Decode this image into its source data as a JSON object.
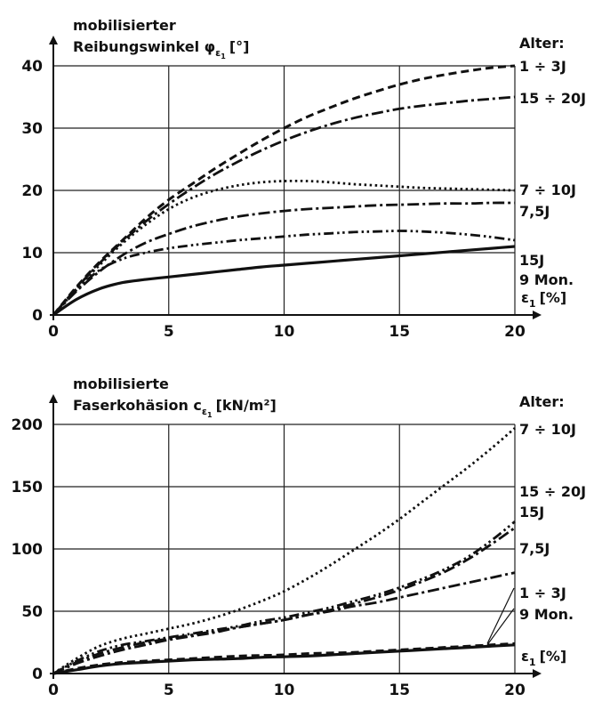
{
  "chart_data": [
    {
      "type": "line",
      "ylabel_line1": "mobilisierter",
      "ylabel_line2_prefix": "Reibungswinkel φ",
      "ylabel_sub": "ε",
      "ylabel_subsub": "1",
      "ylabel_unit": "[°]",
      "xlabel": "ε",
      "xlabel_sub": "1",
      "xlabel_unit": "[%]",
      "legend_title": "Alter:",
      "xlim": [
        0,
        20
      ],
      "ylim": [
        0,
        40
      ],
      "xticks": [
        0,
        5,
        10,
        15,
        20
      ],
      "yticks": [
        0,
        10,
        20,
        30,
        40
      ],
      "grid": true,
      "series": [
        {
          "name": "1 ÷ 3J",
          "dash": "dashed",
          "x": [
            0,
            1,
            2,
            3,
            4,
            5,
            6,
            7,
            8,
            9,
            10,
            11,
            12,
            13,
            14,
            15,
            16,
            17,
            18,
            19,
            20
          ],
          "y": [
            0,
            4.5,
            8.5,
            12,
            15.5,
            18.5,
            21,
            23.5,
            25.8,
            28,
            30,
            31.8,
            33.3,
            34.7,
            35.9,
            37,
            37.9,
            38.6,
            39.2,
            39.7,
            40
          ]
        },
        {
          "name": "15 ÷ 20J",
          "dash": "dashdot",
          "x": [
            0,
            1,
            2,
            3,
            4,
            5,
            6,
            7,
            8,
            9,
            10,
            11,
            12,
            13,
            14,
            15,
            16,
            17,
            18,
            19,
            20
          ],
          "y": [
            0,
            4.3,
            8.3,
            11.8,
            15,
            17.8,
            20.3,
            22.6,
            24.6,
            26.4,
            28,
            29.4,
            30.6,
            31.6,
            32.4,
            33.1,
            33.6,
            34,
            34.4,
            34.7,
            35
          ]
        },
        {
          "name": "7 ÷ 10J",
          "dash": "dotted",
          "x": [
            0,
            1,
            2,
            3,
            4,
            5,
            6,
            7,
            8,
            9,
            10,
            11,
            12,
            13,
            14,
            15,
            16,
            17,
            18,
            19,
            20
          ],
          "y": [
            0,
            4.2,
            8,
            11.5,
            14.5,
            17,
            18.8,
            20,
            20.8,
            21.3,
            21.5,
            21.5,
            21.3,
            21,
            20.8,
            20.6,
            20.4,
            20.3,
            20.2,
            20.1,
            20
          ]
        },
        {
          "name": "7,5J",
          "dash": "dashdot",
          "x": [
            0,
            1,
            2,
            3,
            4,
            5,
            6,
            7,
            8,
            9,
            10,
            11,
            12,
            13,
            14,
            15,
            16,
            17,
            18,
            19,
            20
          ],
          "y": [
            0,
            3.8,
            7,
            9.6,
            11.6,
            13,
            14.2,
            15.1,
            15.8,
            16.3,
            16.7,
            17,
            17.2,
            17.4,
            17.6,
            17.7,
            17.8,
            17.9,
            17.9,
            18,
            18
          ]
        },
        {
          "name": "15J",
          "dash": "dashdotdot",
          "x": [
            0,
            1,
            2,
            3,
            4,
            5,
            6,
            7,
            8,
            9,
            10,
            11,
            12,
            13,
            14,
            15,
            16,
            17,
            18,
            19,
            20
          ],
          "y": [
            0,
            4,
            7.2,
            9,
            10,
            10.7,
            11.2,
            11.6,
            12,
            12.3,
            12.6,
            12.9,
            13.1,
            13.3,
            13.4,
            13.5,
            13.4,
            13.2,
            12.9,
            12.5,
            12
          ]
        },
        {
          "name": "9 Mon.",
          "dash": "solid",
          "x": [
            0,
            1,
            2,
            3,
            4,
            5,
            6,
            7,
            8,
            9,
            10,
            11,
            12,
            13,
            14,
            15,
            16,
            17,
            18,
            19,
            20
          ],
          "y": [
            0,
            2.5,
            4.2,
            5.2,
            5.7,
            6.1,
            6.5,
            6.9,
            7.3,
            7.7,
            8,
            8.3,
            8.6,
            8.9,
            9.2,
            9.5,
            9.8,
            10.1,
            10.4,
            10.7,
            11
          ]
        }
      ]
    },
    {
      "type": "line",
      "ylabel_line1": "mobilisierte",
      "ylabel_line2_prefix": "Faserkohäsion c",
      "ylabel_sub": "ε",
      "ylabel_subsub": "1",
      "ylabel_unit": "[kN/m²]",
      "xlabel": "ε",
      "xlabel_sub": "1",
      "xlabel_unit": "[%]",
      "legend_title": "Alter:",
      "xlim": [
        0,
        20
      ],
      "ylim": [
        0,
        200
      ],
      "xticks": [
        0,
        5,
        10,
        15,
        20
      ],
      "yticks": [
        0,
        50,
        100,
        150,
        200
      ],
      "grid": true,
      "series": [
        {
          "name": "7 ÷ 10J",
          "dash": "dotted",
          "x": [
            0,
            1,
            2,
            3,
            4,
            5,
            6,
            7,
            8,
            9,
            10,
            11,
            12,
            13,
            14,
            15,
            16,
            17,
            18,
            19,
            20
          ],
          "y": [
            0,
            12,
            22,
            28,
            32,
            36,
            40,
            45,
            51,
            58,
            66,
            76,
            87,
            99,
            111,
            124,
            138,
            152,
            166,
            181,
            197
          ]
        },
        {
          "name": "15 ÷ 20J",
          "dash": "dashdotdot",
          "x": [
            0,
            1,
            2,
            3,
            4,
            5,
            6,
            7,
            8,
            9,
            10,
            11,
            12,
            13,
            14,
            15,
            16,
            17,
            18,
            19,
            20
          ],
          "y": [
            0,
            10,
            18,
            23,
            26,
            29,
            32,
            35,
            38,
            42,
            45,
            49,
            53,
            58,
            63,
            69,
            76,
            84,
            94,
            107,
            122
          ]
        },
        {
          "name": "15J",
          "dash": "dashdot",
          "x": [
            0,
            1,
            2,
            3,
            4,
            5,
            6,
            7,
            8,
            9,
            10,
            11,
            12,
            13,
            14,
            15,
            16,
            17,
            18,
            19,
            20
          ],
          "y": [
            0,
            9,
            16,
            21,
            25,
            28,
            31,
            34,
            37,
            40,
            43,
            47,
            51,
            56,
            61,
            67,
            74,
            82,
            92,
            104,
            117
          ]
        },
        {
          "name": "7,5J",
          "dash": "dashdot",
          "x": [
            0,
            1,
            2,
            3,
            4,
            5,
            6,
            7,
            8,
            9,
            10,
            11,
            12,
            13,
            14,
            15,
            16,
            17,
            18,
            19,
            20
          ],
          "y": [
            0,
            8,
            14,
            19,
            23,
            27,
            30,
            33,
            37,
            40,
            43,
            47,
            50,
            54,
            57,
            61,
            65,
            69,
            73,
            77,
            81
          ]
        },
        {
          "name": "1 ÷ 3J",
          "dash": "dashed",
          "x": [
            0,
            1,
            2,
            3,
            4,
            5,
            6,
            7,
            8,
            9,
            10,
            11,
            12,
            13,
            14,
            15,
            16,
            17,
            18,
            19,
            20
          ],
          "y": [
            0,
            4,
            7,
            9,
            10,
            11,
            12,
            13,
            14,
            14.5,
            15,
            16,
            16.5,
            17,
            18,
            19,
            20,
            21,
            22,
            23,
            24
          ]
        },
        {
          "name": "9 Mon.",
          "dash": "solid",
          "x": [
            0,
            1,
            2,
            3,
            4,
            5,
            6,
            7,
            8,
            9,
            10,
            11,
            12,
            13,
            14,
            15,
            16,
            17,
            18,
            19,
            20
          ],
          "y": [
            0,
            3,
            6,
            8,
            9,
            10,
            11,
            11.5,
            12,
            13,
            13.5,
            14,
            15,
            16,
            17,
            18,
            19,
            20,
            21,
            22,
            23
          ]
        }
      ]
    }
  ]
}
